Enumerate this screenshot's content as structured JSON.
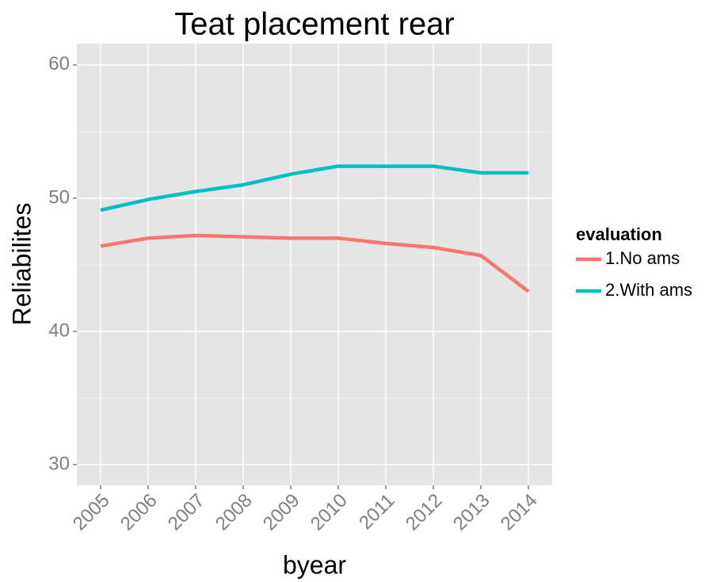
{
  "chart_data": {
    "type": "line",
    "title": "Teat placement rear",
    "x_label": "byear",
    "y_label": "Reliabilites",
    "categories": [
      "2005",
      "2006",
      "2007",
      "2008",
      "2009",
      "2010",
      "2011",
      "2012",
      "2013",
      "2014"
    ],
    "series": [
      {
        "name": "1.No ams",
        "color": "#f8766d",
        "values": [
          46.4,
          47.0,
          47.2,
          47.1,
          47.0,
          47.0,
          46.6,
          46.3,
          45.7,
          43.0
        ]
      },
      {
        "name": "2.With ams",
        "color": "#00bfc4",
        "values": [
          49.1,
          49.9,
          50.5,
          51.0,
          51.8,
          52.4,
          52.4,
          52.4,
          51.9,
          51.9
        ]
      }
    ],
    "legend_title": "evaluation",
    "ylim": [
      28.45,
      61.6
    ],
    "yticks": [
      30,
      40,
      50,
      60
    ],
    "grid": true
  }
}
